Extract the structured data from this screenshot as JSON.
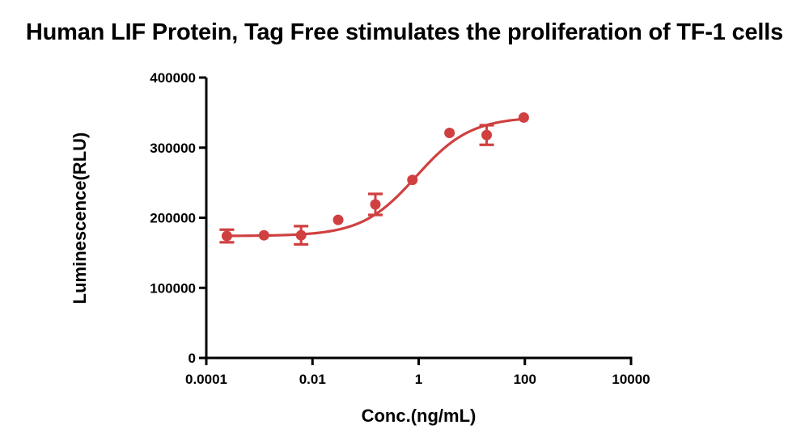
{
  "chart_data": {
    "type": "scatter",
    "title": "Human LIF Protein, Tag Free stimulates the proliferation of TF-1 cells",
    "xlabel": "Conc.(ng/mL)",
    "ylabel": "Luminescence(RLU)",
    "x_scale": "log",
    "xlim": [
      0.0001,
      10000
    ],
    "ylim": [
      0,
      400000
    ],
    "x_ticks": [
      0.0001,
      0.01,
      1,
      100,
      10000
    ],
    "x_tick_labels": [
      "0.0001",
      "0.01",
      "1",
      "100",
      "10000"
    ],
    "y_ticks": [
      0,
      100000,
      200000,
      300000,
      400000
    ],
    "y_tick_labels": [
      "0",
      "100000",
      "200000",
      "300000",
      "400000"
    ],
    "grid": false,
    "color": "#d04040",
    "series": [
      {
        "points": [
          {
            "x": 0.000244,
            "y": 174000,
            "err": 9000
          },
          {
            "x": 0.00122,
            "y": 175000,
            "err": 0
          },
          {
            "x": 0.0061,
            "y": 175000,
            "err": 13000
          },
          {
            "x": 0.0305,
            "y": 197000,
            "err": 0
          },
          {
            "x": 0.153,
            "y": 219000,
            "err": 15000
          },
          {
            "x": 0.763,
            "y": 254000,
            "err": 0
          },
          {
            "x": 3.81,
            "y": 321000,
            "err": 0
          },
          {
            "x": 19.1,
            "y": 318000,
            "err": 14000
          },
          {
            "x": 95.4,
            "y": 343000,
            "err": 0
          }
        ],
        "fit": {
          "model": "4PL",
          "bottom": 174000,
          "top": 344000,
          "ec50": 0.9,
          "hill": 0.85,
          "x_range": [
            0.000244,
            95.4
          ]
        }
      }
    ]
  }
}
